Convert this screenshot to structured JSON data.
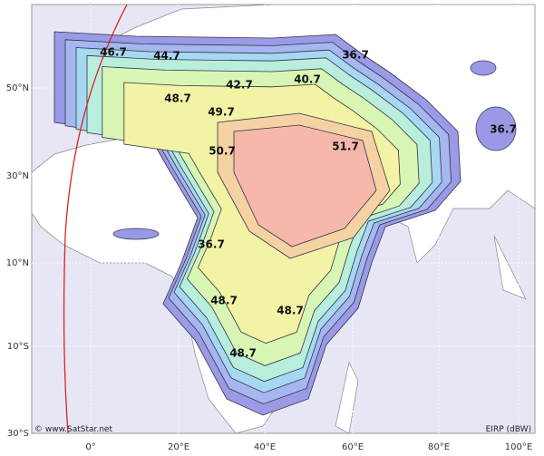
{
  "map": {
    "lat_labels": [
      "50°N",
      "30°N",
      "10°N",
      "10°S",
      "30°S"
    ],
    "lon_labels": [
      "0°",
      "20°E",
      "40°E",
      "60°E",
      "80°E",
      "100°E"
    ],
    "contour_labels": [
      46.7,
      44.7,
      36.7,
      42.7,
      40.7,
      48.7,
      49.7,
      36.7,
      50.7,
      51.7,
      36.7,
      48.7,
      48.7,
      48.7
    ],
    "credit": "© www.SatStar.net",
    "units": "EIRP (dBW)"
  }
}
